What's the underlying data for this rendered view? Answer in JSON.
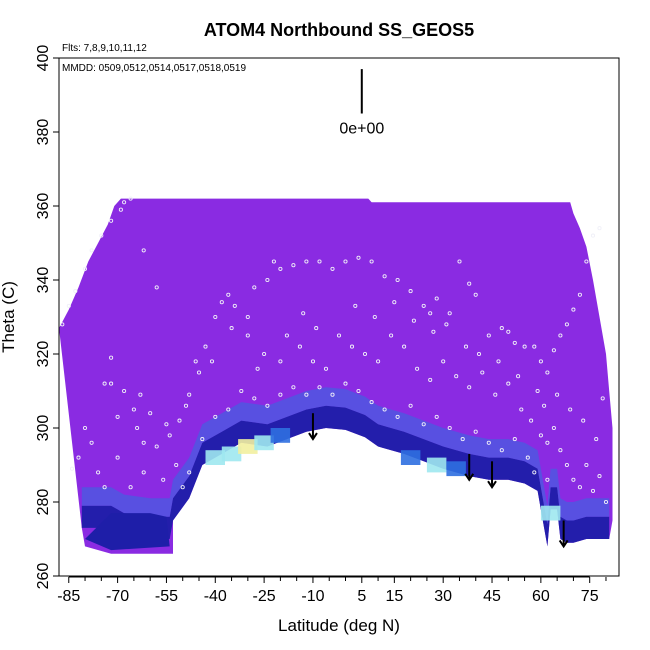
{
  "colors": {
    "upper_fill": "#8a2be2",
    "gradient_dark": "#1e1ea8",
    "gradient_mid": "#2f6fe0",
    "gradient_light": "#9fe8f0",
    "gradient_pale": "#f2f0a0",
    "marker": "#f0f0f8",
    "arrow": "#000000",
    "axis": "#000000"
  },
  "chart_data": {
    "type": "heatmap",
    "title": "ATOM4 Northbound SS_GEOS5",
    "xlabel": "Latitude (deg N)",
    "ylabel": "Theta (C)",
    "xlim": [
      -88,
      84
    ],
    "ylim": [
      260,
      400
    ],
    "x_ticks": [
      -85,
      -70,
      -55,
      -40,
      -25,
      -10,
      5,
      15,
      30,
      45,
      60,
      75
    ],
    "x_minor_ticks": [
      -80,
      -75,
      -65,
      -60,
      -50,
      -45,
      -35,
      -30,
      -20,
      -15,
      -5,
      0,
      10,
      20,
      25,
      35,
      40,
      50,
      55,
      65,
      70,
      80
    ],
    "y_ticks": [
      260,
      280,
      300,
      320,
      340,
      360,
      380,
      400
    ],
    "flights_note": "Flts: 7,8,9,10,11,12",
    "dates_note": "MMDD: 0509,0512,0514,0517,0518,0519",
    "reference_value_label": "0e+00",
    "reference_bar": {
      "x": 5,
      "y_top": 397,
      "y_bottom": 385
    },
    "upper_boundary": [
      [
        -88,
        327
      ],
      [
        -85,
        332
      ],
      [
        -82,
        338
      ],
      [
        -79,
        345
      ],
      [
        -76,
        350
      ],
      [
        -73,
        355
      ],
      [
        -71,
        360
      ],
      [
        -69,
        362
      ],
      [
        -60,
        362
      ],
      [
        -40,
        362
      ],
      [
        -20,
        362
      ],
      [
        0,
        362
      ],
      [
        7,
        362
      ],
      [
        8,
        361
      ],
      [
        20,
        361
      ],
      [
        40,
        361
      ],
      [
        60,
        361
      ],
      [
        69,
        361
      ],
      [
        70,
        358
      ],
      [
        72,
        354
      ],
      [
        74,
        349
      ],
      [
        76,
        340
      ],
      [
        78,
        330
      ],
      [
        80,
        320
      ],
      [
        81,
        310
      ],
      [
        82,
        300
      ],
      [
        82,
        290
      ],
      [
        82,
        275
      ],
      [
        81,
        270
      ]
    ],
    "tropopause_boundary": [
      [
        -81,
        273
      ],
      [
        -76,
        273
      ],
      [
        -72,
        273
      ],
      [
        -68,
        271
      ],
      [
        -60,
        270
      ],
      [
        -54,
        270
      ],
      [
        -53,
        275
      ],
      [
        -48,
        281
      ],
      [
        -44,
        290
      ],
      [
        -38,
        293
      ],
      [
        -32,
        296
      ],
      [
        -24,
        295
      ],
      [
        -18,
        297
      ],
      [
        -12,
        299
      ],
      [
        -6,
        300
      ],
      [
        0,
        299.5
      ],
      [
        6,
        297.5
      ],
      [
        10,
        295
      ],
      [
        18,
        293
      ],
      [
        24,
        291
      ],
      [
        30,
        289
      ],
      [
        38,
        287
      ],
      [
        44,
        286
      ],
      [
        50,
        286
      ],
      [
        55,
        285
      ],
      [
        59,
        283
      ],
      [
        61,
        273
      ],
      [
        62,
        268
      ],
      [
        63,
        278
      ],
      [
        65,
        278
      ],
      [
        66,
        270
      ],
      [
        68,
        269
      ],
      [
        70,
        269
      ],
      [
        74,
        270
      ],
      [
        78,
        270
      ],
      [
        81,
        270
      ]
    ],
    "lower_block_boundary": [
      [
        -81,
        273
      ],
      [
        -76,
        275
      ],
      [
        -72,
        279
      ],
      [
        -60,
        279
      ],
      [
        -56,
        278
      ],
      [
        -53,
        275
      ],
      [
        -53,
        266
      ],
      [
        -60,
        266
      ],
      [
        -72,
        266
      ],
      [
        -80,
        268
      ]
    ],
    "arrows": [
      {
        "lat": -10,
        "theta_from": 304,
        "theta_to": 297
      },
      {
        "lat": 38,
        "theta_from": 293,
        "theta_to": 286
      },
      {
        "lat": 45,
        "theta_from": 291,
        "theta_to": 284
      },
      {
        "lat": 67,
        "theta_from": 275,
        "theta_to": 268
      }
    ],
    "gradient_band": [
      {
        "lat": -40,
        "theta": 292,
        "level": 0.7
      },
      {
        "lat": -35,
        "theta": 293,
        "level": 0.85
      },
      {
        "lat": -30,
        "theta": 295,
        "level": 0.95
      },
      {
        "lat": -25,
        "theta": 296,
        "level": 0.75
      },
      {
        "lat": -20,
        "theta": 298,
        "level": 0.5
      },
      {
        "lat": 20,
        "theta": 292,
        "level": 0.55
      },
      {
        "lat": 28,
        "theta": 290,
        "level": 0.75
      },
      {
        "lat": 34,
        "theta": 289,
        "level": 0.6
      },
      {
        "lat": 63,
        "theta": 277,
        "level": 0.9
      }
    ],
    "markers": [
      [
        -87,
        328
      ],
      [
        -85,
        333
      ],
      [
        -83,
        337
      ],
      [
        -80,
        343
      ],
      [
        -78,
        348
      ],
      [
        -75,
        352
      ],
      [
        -72,
        356
      ],
      [
        -69,
        359
      ],
      [
        -68,
        361
      ],
      [
        -66,
        362
      ],
      [
        -72,
        319
      ],
      [
        -74,
        312
      ],
      [
        -80,
        300
      ],
      [
        -82,
        292
      ],
      [
        -84,
        289
      ],
      [
        -78,
        296
      ],
      [
        -70,
        303
      ],
      [
        -63,
        309
      ],
      [
        -65,
        305
      ],
      [
        -60,
        304
      ],
      [
        -55,
        301
      ],
      [
        -54,
        298
      ],
      [
        -51,
        302
      ],
      [
        -49,
        306
      ],
      [
        -48,
        309
      ],
      [
        -46,
        318
      ],
      [
        -43,
        322
      ],
      [
        -40,
        330
      ],
      [
        -38,
        334
      ],
      [
        -36,
        336
      ],
      [
        -34,
        333
      ],
      [
        -30,
        330
      ],
      [
        -28,
        338
      ],
      [
        -24,
        340
      ],
      [
        -22,
        345
      ],
      [
        -20,
        343
      ],
      [
        -16,
        344
      ],
      [
        -12,
        345
      ],
      [
        -8,
        345
      ],
      [
        -4,
        343
      ],
      [
        0,
        345
      ],
      [
        4,
        346
      ],
      [
        8,
        345
      ],
      [
        12,
        341
      ],
      [
        16,
        340
      ],
      [
        20,
        337
      ],
      [
        24,
        333
      ],
      [
        26,
        331
      ],
      [
        28,
        335
      ],
      [
        32,
        331
      ],
      [
        35,
        345
      ],
      [
        38,
        339
      ],
      [
        40,
        336
      ],
      [
        44,
        325
      ],
      [
        48,
        327
      ],
      [
        50,
        326
      ],
      [
        52,
        323
      ],
      [
        55,
        322
      ],
      [
        58,
        322
      ],
      [
        60,
        318
      ],
      [
        62,
        315
      ],
      [
        64,
        321
      ],
      [
        66,
        325
      ],
      [
        68,
        328
      ],
      [
        70,
        332
      ],
      [
        72,
        336
      ],
      [
        74,
        345
      ],
      [
        76,
        352
      ],
      [
        78,
        354
      ],
      [
        -58,
        338
      ],
      [
        -62,
        348
      ],
      [
        -35,
        327
      ],
      [
        -30,
        325
      ],
      [
        -25,
        320
      ],
      [
        -20,
        318
      ],
      [
        -18,
        325
      ],
      [
        -14,
        322
      ],
      [
        -10,
        318
      ],
      [
        -6,
        316
      ],
      [
        -2,
        325
      ],
      [
        2,
        322
      ],
      [
        6,
        320
      ],
      [
        10,
        318
      ],
      [
        14,
        325
      ],
      [
        18,
        322
      ],
      [
        22,
        316
      ],
      [
        26,
        313
      ],
      [
        30,
        318
      ],
      [
        34,
        314
      ],
      [
        38,
        311
      ],
      [
        42,
        315
      ],
      [
        46,
        309
      ],
      [
        50,
        312
      ],
      [
        54,
        305
      ],
      [
        57,
        302
      ],
      [
        60,
        298
      ],
      [
        62,
        296
      ],
      [
        64,
        300
      ],
      [
        66,
        294
      ],
      [
        68,
        290
      ],
      [
        70,
        286
      ],
      [
        72,
        284
      ],
      [
        74,
        290
      ],
      [
        76,
        283
      ],
      [
        78,
        287
      ],
      [
        80,
        280
      ],
      [
        -72,
        312
      ],
      [
        -68,
        310
      ],
      [
        -64,
        300
      ],
      [
        -62,
        296
      ],
      [
        -58,
        295
      ],
      [
        -52,
        290
      ],
      [
        -50,
        284
      ],
      [
        -48,
        288
      ],
      [
        -44,
        297
      ],
      [
        -40,
        303
      ],
      [
        -36,
        305
      ],
      [
        -32,
        310
      ],
      [
        -28,
        308
      ],
      [
        -24,
        306
      ],
      [
        -20,
        309
      ],
      [
        -16,
        311
      ],
      [
        -12,
        309
      ],
      [
        -8,
        311
      ],
      [
        -4,
        309
      ],
      [
        0,
        312
      ],
      [
        4,
        310
      ],
      [
        8,
        307
      ],
      [
        12,
        305
      ],
      [
        16,
        303
      ],
      [
        20,
        306
      ],
      [
        24,
        301
      ],
      [
        28,
        303
      ],
      [
        32,
        300
      ],
      [
        36,
        297
      ],
      [
        40,
        299
      ],
      [
        44,
        296
      ],
      [
        48,
        294
      ],
      [
        52,
        297
      ],
      [
        56,
        292
      ],
      [
        58,
        288
      ],
      [
        62,
        286
      ],
      [
        -45,
        315
      ],
      [
        -41,
        318
      ],
      [
        -27,
        316
      ],
      [
        -13,
        331
      ],
      [
        -9,
        327
      ],
      [
        3,
        333
      ],
      [
        9,
        330
      ],
      [
        15,
        334
      ],
      [
        21,
        329
      ],
      [
        27,
        326
      ],
      [
        31,
        328
      ],
      [
        37,
        322
      ],
      [
        41,
        320
      ],
      [
        47,
        318
      ],
      [
        53,
        314
      ],
      [
        59,
        310
      ],
      [
        61,
        306
      ],
      [
        65,
        309
      ],
      [
        69,
        305
      ],
      [
        73,
        302
      ],
      [
        77,
        297
      ],
      [
        79,
        308
      ],
      [
        -66,
        284
      ],
      [
        -62,
        288
      ],
      [
        -56,
        286
      ],
      [
        -76,
        288
      ],
      [
        -74,
        284
      ],
      [
        -70,
        292
      ]
    ]
  }
}
